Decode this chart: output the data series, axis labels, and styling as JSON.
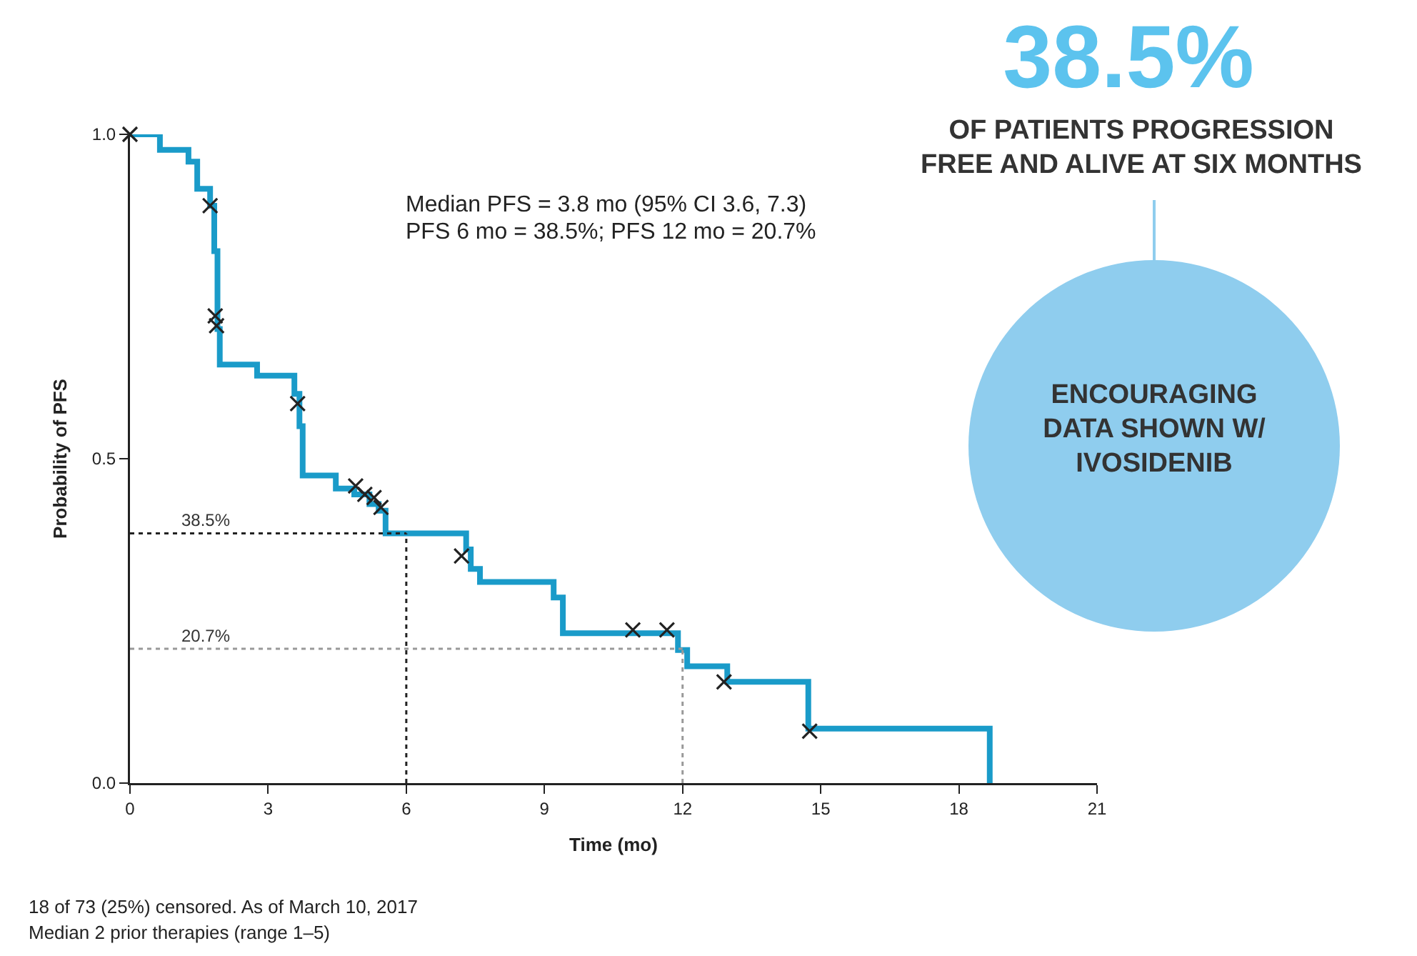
{
  "chart_data": {
    "type": "step",
    "xlabel": "Time (mo)",
    "ylabel": "Probability of PFS",
    "xlim": [
      0,
      21
    ],
    "xticks": [
      0,
      3,
      6,
      9,
      12,
      15,
      18,
      21
    ],
    "ylim": [
      0,
      1
    ],
    "yticks": [
      {
        "value": 0,
        "label": "0.0"
      },
      {
        "value": 0.5,
        "label": "0.5"
      },
      {
        "value": 1,
        "label": "1.0"
      }
    ],
    "grid": false,
    "series": [
      {
        "color": "#1a9bc9",
        "x": [
          0,
          0.65,
          1.27,
          1.46,
          1.74,
          1.83,
          1.9,
          1.95,
          2.76,
          3.57,
          3.68,
          3.75,
          4.47,
          4.87,
          5.2,
          5.4,
          5.55,
          7.3,
          7.4,
          7.6,
          9.2,
          9.4,
          11.9,
          12.1,
          12.97,
          14.73,
          18.67,
          18.67
        ],
        "values": [
          1,
          0.976,
          0.958,
          0.916,
          0.89,
          0.82,
          0.7,
          0.645,
          0.628,
          0.6,
          0.55,
          0.474,
          0.454,
          0.445,
          0.43,
          0.42,
          0.385,
          0.36,
          0.33,
          0.31,
          0.286,
          0.231,
          0.205,
          0.18,
          0.156,
          0.084,
          0.084,
          0
        ]
      },
      {
        "type": "scatter",
        "color": "#222222",
        "marker": "cross",
        "x": [
          0,
          1.74,
          1.85,
          1.88,
          3.64,
          4.9,
          5.1,
          5.3,
          5.45,
          7.2,
          10.92,
          11.66,
          12.9,
          14.76
        ],
        "values": [
          1,
          0.89,
          0.72,
          0.705,
          0.585,
          0.458,
          0.445,
          0.44,
          0.425,
          0.35,
          0.236,
          0.236,
          0.156,
          0.08
        ]
      }
    ],
    "ref_lines": [
      {
        "axis": "y",
        "value": 0.385,
        "label": "38.5%",
        "color": "#222222",
        "line_style": "dotted"
      },
      {
        "axis": "x",
        "value": 6,
        "color": "#222222",
        "line_style": "dotted"
      },
      {
        "axis": "y",
        "value": 0.207,
        "label": "20.7%",
        "color": "#999999",
        "line_style": "dotted"
      },
      {
        "axis": "x",
        "value": 12,
        "color": "#999999",
        "line_style": "dotted"
      }
    ],
    "annotations": [
      "Median PFS = 3.8 mo (95% CI 3.6, 7.3)",
      "PFS 6 mo = 38.5%; PFS 12 mo = 20.7%",
      "38.5%",
      "OF PATIENTS PROGRESSION FREE AND ALIVE AT SIX MONTHS",
      "ENCOURAGING DATA SHOWN W/ IVOSIDENIB",
      "18 of 73 (25%) censored. As of March 10, 2017",
      "Median 2 prior therapies (range 1–5)"
    ]
  }
}
